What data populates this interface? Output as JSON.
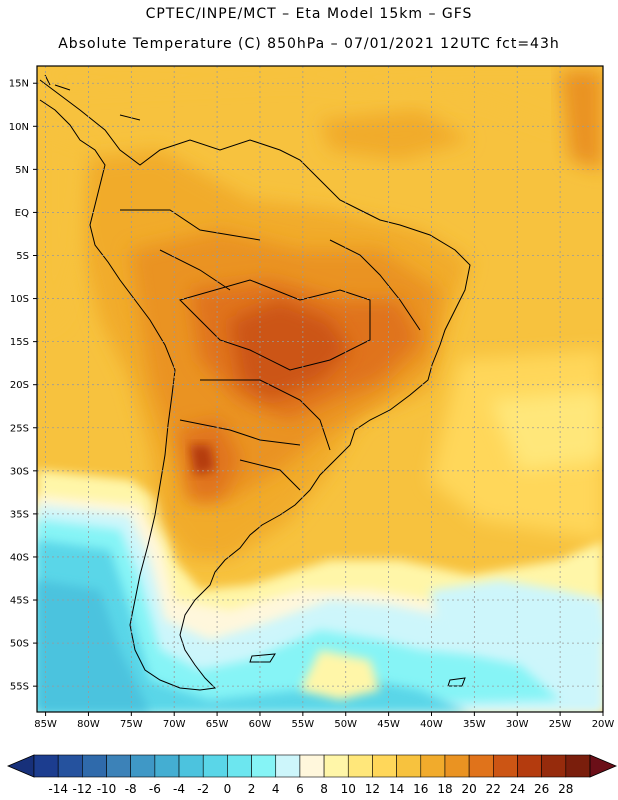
{
  "title": {
    "line1": "CPTEC/INPE/MCT –   Eta Model 15km – GFS",
    "line2": "Absolute Temperature (C) 850hPa – 07/01/2021 12UTC fct=43h"
  },
  "axes": {
    "lat_labels": [
      "15N",
      "10N",
      "5N",
      "EQ",
      "5S",
      "10S",
      "15S",
      "20S",
      "25S",
      "30S",
      "35S",
      "40S",
      "45S",
      "50S",
      "55S"
    ],
    "lat_values": [
      15,
      10,
      5,
      0,
      -5,
      -10,
      -15,
      -20,
      -25,
      -30,
      -35,
      -40,
      -45,
      -50,
      -55
    ],
    "lon_labels": [
      "85W",
      "80W",
      "75W",
      "70W",
      "65W",
      "60W",
      "55W",
      "50W",
      "45W",
      "40W",
      "35W",
      "30W",
      "25W",
      "20W"
    ],
    "lon_values": [
      -85,
      -80,
      -75,
      -70,
      -65,
      -60,
      -55,
      -50,
      -45,
      -40,
      -35,
      -30,
      -25,
      -20
    ],
    "lon_range": [
      -86,
      -20
    ],
    "lat_range": [
      -58,
      17
    ]
  },
  "colorbar": {
    "labels": [
      "-14",
      "-12",
      "-10",
      "-8",
      "-6",
      "-4",
      "-2",
      "0",
      "2",
      "4",
      "6",
      "8",
      "10",
      "12",
      "14",
      "16",
      "18",
      "20",
      "22",
      "24",
      "26",
      "28"
    ],
    "colors": [
      "#1c3d8f",
      "#25529e",
      "#2f6aab",
      "#3c82b8",
      "#3f98c6",
      "#44aed2",
      "#4cc3de",
      "#5ad6e8",
      "#6ce6ef",
      "#86f4f6",
      "#cdf6fb",
      "#fff7dc",
      "#fff6a8",
      "#ffe77a",
      "#ffd75a",
      "#f7c23e",
      "#f1ab2c",
      "#ea9322",
      "#e0731b",
      "#cc5514",
      "#b43b0e",
      "#962b0c",
      "#7a1e0c"
    ],
    "under_color": "#17307a",
    "over_color": "#6b0f18"
  }
}
